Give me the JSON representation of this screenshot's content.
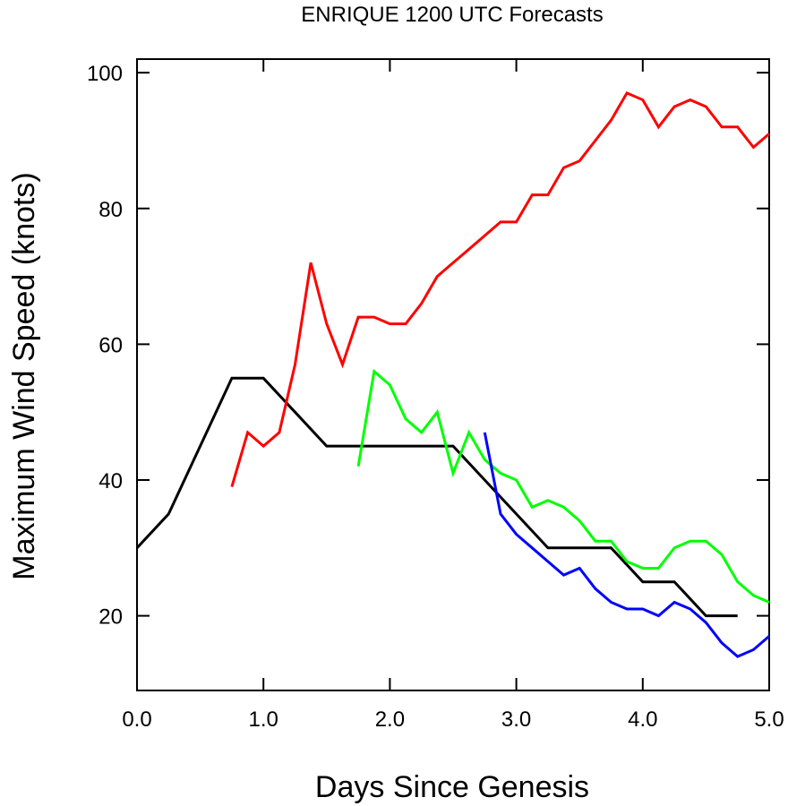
{
  "chart_data": {
    "type": "line",
    "title": "ENRIQUE 1200 UTC Forecasts",
    "xlabel": "Days Since Genesis",
    "ylabel": "Maximum Wind Speed (knots)",
    "xlim": [
      0,
      5
    ],
    "ylim": [
      9,
      102
    ],
    "x_ticks": [
      0,
      1,
      2,
      3,
      4,
      5
    ],
    "x_tick_labels": [
      "0.0",
      "1.0",
      "2.0",
      "3.0",
      "4.0",
      "5.0"
    ],
    "y_ticks": [
      20,
      40,
      60,
      80,
      100
    ],
    "y_tick_labels": [
      "20",
      "40",
      "60",
      "80",
      "100"
    ],
    "grid": false,
    "legend": "none",
    "series": [
      {
        "color": "#000000",
        "x": [
          0,
          0.25,
          0.5,
          0.75,
          1.0,
          1.25,
          1.5,
          1.75,
          2.0,
          2.25,
          2.5,
          2.75,
          3.0,
          3.25,
          3.5,
          3.75,
          4.0,
          4.25,
          4.5,
          4.75
        ],
        "y": [
          30,
          35,
          45,
          55,
          55,
          50,
          45,
          45,
          45,
          45,
          45,
          40,
          35,
          30,
          30,
          30,
          25,
          25,
          20,
          20
        ]
      },
      {
        "color": "#ff0000",
        "x": [
          0.75,
          0.875,
          1.0,
          1.125,
          1.25,
          1.375,
          1.5,
          1.625,
          1.75,
          1.875,
          2.0,
          2.125,
          2.25,
          2.375,
          2.5,
          2.625,
          2.75,
          2.875,
          3.0,
          3.125,
          3.25,
          3.375,
          3.5,
          3.625,
          3.75,
          3.875,
          4.0,
          4.125,
          4.25,
          4.375,
          4.5,
          4.625,
          4.75,
          4.875,
          5.0
        ],
        "y": [
          39,
          47,
          45,
          47,
          57,
          72,
          63,
          57,
          64,
          64,
          63,
          63,
          66,
          70,
          72,
          74,
          76,
          78,
          78,
          82,
          82,
          86,
          87,
          90,
          93,
          97,
          96,
          92,
          95,
          96,
          95,
          92,
          92,
          89,
          91
        ]
      },
      {
        "color": "#00ff00",
        "x": [
          1.75,
          1.875,
          2.0,
          2.125,
          2.25,
          2.375,
          2.5,
          2.625,
          2.75,
          2.875,
          3.0,
          3.125,
          3.25,
          3.375,
          3.5,
          3.625,
          3.75,
          3.875,
          4.0,
          4.125,
          4.25,
          4.375,
          4.5,
          4.625,
          4.75,
          4.875,
          5.0
        ],
        "y": [
          42,
          56,
          54,
          49,
          47,
          50,
          41,
          47,
          43,
          41,
          40,
          36,
          37,
          36,
          34,
          31,
          31,
          28,
          27,
          27,
          30,
          31,
          31,
          29,
          25,
          23,
          22
        ]
      },
      {
        "color": "#0000ff",
        "x": [
          2.75,
          2.875,
          3.0,
          3.125,
          3.25,
          3.375,
          3.5,
          3.625,
          3.75,
          3.875,
          4.0,
          4.125,
          4.25,
          4.375,
          4.5,
          4.625,
          4.75,
          4.875,
          5.0
        ],
        "y": [
          47,
          35,
          32,
          30,
          28,
          26,
          27,
          24,
          22,
          21,
          21,
          20,
          22,
          21,
          19,
          16,
          14,
          15,
          17
        ]
      }
    ]
  }
}
